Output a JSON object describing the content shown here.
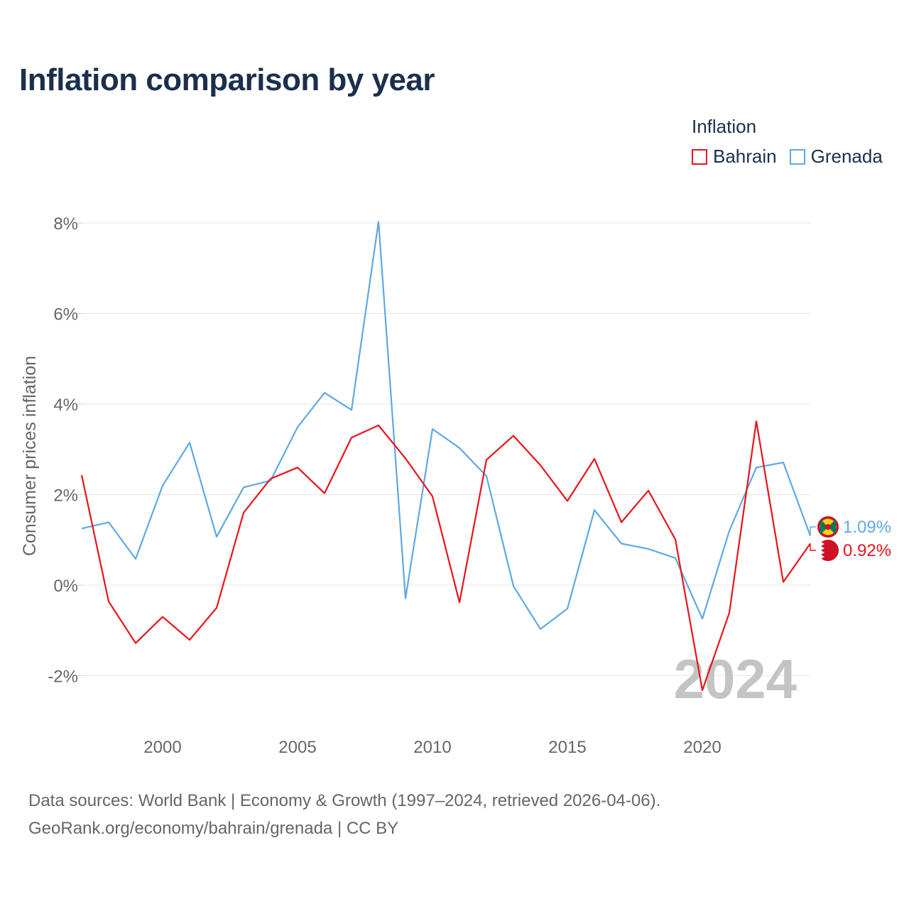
{
  "title": "Inflation comparison by year",
  "legend": {
    "title": "Inflation",
    "items": [
      {
        "name": "Bahrain",
        "color": "#e8141b"
      },
      {
        "name": "Grenada",
        "color": "#5fa8e3"
      }
    ]
  },
  "source": {
    "line1": "Data sources: World Bank | Economy & Growth (1997–2024, retrieved 2026-04-06).",
    "line2": "GeoRank.org/economy/bahrain/grenada | CC BY"
  },
  "chart_data": {
    "type": "line",
    "title": "Inflation comparison by year",
    "xlabel": "",
    "ylabel": "Consumer prices inflation",
    "xlim": [
      1997,
      2024
    ],
    "ylim": [
      -3,
      8.5
    ],
    "y_ticks": [
      -2,
      0,
      2,
      4,
      6,
      8
    ],
    "y_tick_labels": [
      "-2%",
      "0%",
      "2%",
      "4%",
      "6%",
      "8%"
    ],
    "x_ticks": [
      2000,
      2005,
      2010,
      2015,
      2020
    ],
    "x_tick_labels": [
      "2000",
      "2005",
      "2010",
      "2015",
      "2020"
    ],
    "grid": true,
    "year_watermark": "2024",
    "x": [
      1997,
      1998,
      1999,
      2000,
      2001,
      2002,
      2003,
      2004,
      2005,
      2006,
      2007,
      2008,
      2009,
      2010,
      2011,
      2012,
      2013,
      2014,
      2015,
      2016,
      2017,
      2018,
      2019,
      2020,
      2021,
      2022,
      2023,
      2024
    ],
    "series": [
      {
        "name": "Bahrain",
        "color": "#e8141b",
        "end_label": "0.92%",
        "values": [
          2.43,
          -0.36,
          -1.28,
          -0.7,
          -1.21,
          -0.5,
          1.6,
          2.35,
          2.6,
          2.03,
          3.26,
          3.53,
          2.8,
          1.96,
          -0.38,
          2.77,
          3.3,
          2.65,
          1.86,
          2.79,
          1.39,
          2.09,
          1.01,
          -2.32,
          -0.61,
          3.62,
          0.07,
          0.92
        ]
      },
      {
        "name": "Grenada",
        "color": "#5fa8e3",
        "end_label": "1.09%",
        "values": [
          1.25,
          1.39,
          0.58,
          2.2,
          3.15,
          1.07,
          2.16,
          2.31,
          3.49,
          4.25,
          3.87,
          8.03,
          -0.29,
          3.45,
          3.03,
          2.41,
          -0.02,
          -0.97,
          -0.52,
          1.66,
          0.92,
          0.8,
          0.6,
          -0.74,
          1.2,
          2.6,
          2.71,
          1.09
        ]
      }
    ]
  }
}
